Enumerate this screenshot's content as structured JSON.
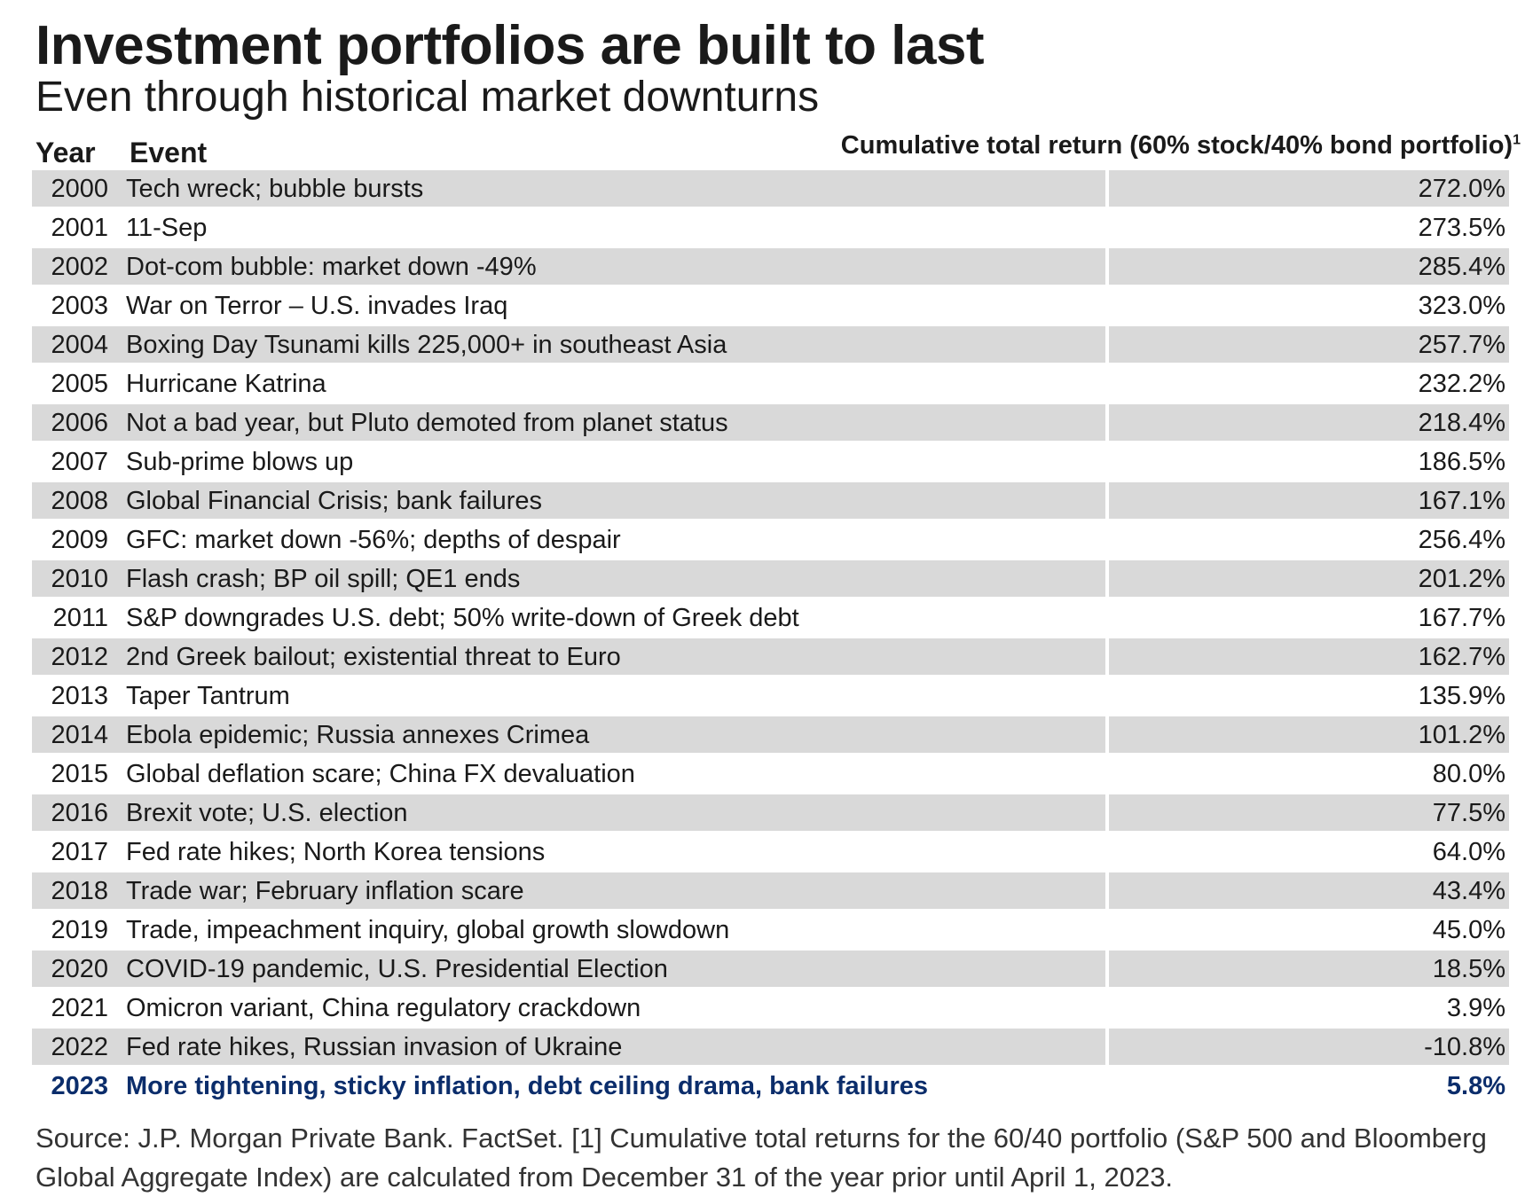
{
  "title": "Investment portfolios are built to last",
  "subtitle": "Even through historical market downturns",
  "headers": {
    "year": "Year",
    "event": "Event",
    "return": "Cumulative total return (60% stock/40% bond portfolio)",
    "return_sup": "1"
  },
  "footnote": "Source: J.P. Morgan Private Bank. FactSet. [1] Cumulative total returns for the 60/40 portfolio (S&P 500 and Bloomberg Global Aggregate Index) are calculated from December 31 of the year prior until April 1, 2023.",
  "colors": {
    "shade": "#d9d9d9",
    "highlight": "#0b2d6b"
  },
  "chart_data": {
    "type": "table",
    "columns": [
      "Year",
      "Event",
      "Cumulative total return (60% stock/40% bond portfolio)"
    ],
    "rows": [
      {
        "year": "2000",
        "event": "Tech wreck; bubble bursts",
        "return": "272.0%"
      },
      {
        "year": "2001",
        "event": "11-Sep",
        "return": "273.5%"
      },
      {
        "year": "2002",
        "event": "Dot-com bubble: market down -49%",
        "return": "285.4%"
      },
      {
        "year": "2003",
        "event": "War on Terror – U.S. invades Iraq",
        "return": "323.0%"
      },
      {
        "year": "2004",
        "event": "Boxing Day Tsunami kills 225,000+ in southeast Asia",
        "return": "257.7%"
      },
      {
        "year": "2005",
        "event": "Hurricane Katrina",
        "return": "232.2%"
      },
      {
        "year": "2006",
        "event": "Not a bad year, but Pluto demoted from planet status",
        "return": "218.4%"
      },
      {
        "year": "2007",
        "event": "Sub-prime blows up",
        "return": "186.5%"
      },
      {
        "year": "2008",
        "event": "Global Financial Crisis; bank failures",
        "return": "167.1%"
      },
      {
        "year": "2009",
        "event": "GFC: market down -56%; depths of despair",
        "return": "256.4%"
      },
      {
        "year": "2010",
        "event": "Flash crash; BP oil spill; QE1 ends",
        "return": "201.2%"
      },
      {
        "year": "2011",
        "event": "S&P downgrades U.S. debt; 50% write-down of Greek debt",
        "return": "167.7%"
      },
      {
        "year": "2012",
        "event": "2nd Greek bailout; existential threat to Euro",
        "return": "162.7%"
      },
      {
        "year": "2013",
        "event": "Taper Tantrum",
        "return": "135.9%"
      },
      {
        "year": "2014",
        "event": "Ebola epidemic; Russia annexes Crimea",
        "return": "101.2%"
      },
      {
        "year": "2015",
        "event": "Global deflation scare; China FX devaluation",
        "return": "80.0%"
      },
      {
        "year": "2016",
        "event": "Brexit vote; U.S. election",
        "return": "77.5%"
      },
      {
        "year": "2017",
        "event": "Fed rate hikes; North Korea tensions",
        "return": "64.0%"
      },
      {
        "year": "2018",
        "event": "Trade war; February inflation scare",
        "return": "43.4%"
      },
      {
        "year": "2019",
        "event": "Trade, impeachment inquiry, global growth slowdown",
        "return": "45.0%"
      },
      {
        "year": "2020",
        "event": "COVID-19 pandemic, U.S. Presidential Election",
        "return": "18.5%"
      },
      {
        "year": "2021",
        "event": "Omicron variant, China regulatory crackdown",
        "return": "3.9%"
      },
      {
        "year": "2022",
        "event": "Fed rate hikes, Russian invasion of Ukraine",
        "return": "-10.8%"
      },
      {
        "year": "2023",
        "event": "More tightening, sticky inflation, debt ceiling drama, bank failures",
        "return": "5.8%",
        "highlight": true
      }
    ]
  }
}
